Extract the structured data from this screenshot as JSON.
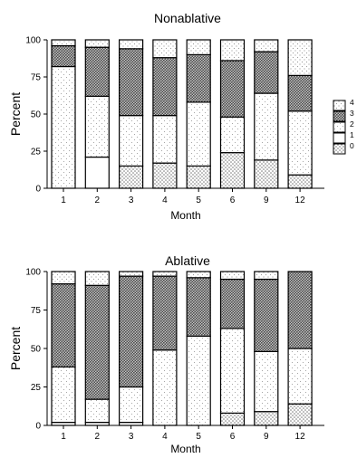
{
  "chart_data": [
    {
      "type": "bar",
      "stacked": true,
      "title": "Nonablative",
      "xlabel": "Month",
      "ylabel": "Percent",
      "ylim": [
        0,
        100
      ],
      "yticks": [
        0,
        25,
        50,
        75,
        100
      ],
      "categories": [
        "1",
        "2",
        "3",
        "4",
        "5",
        "6",
        "9",
        "12"
      ],
      "series": [
        {
          "name": "0",
          "values": [
            0,
            0,
            15,
            17,
            15,
            24,
            19,
            9
          ]
        },
        {
          "name": "1",
          "values": [
            0,
            21,
            0,
            0,
            0,
            0,
            0,
            0
          ]
        },
        {
          "name": "2",
          "values": [
            82,
            41,
            34,
            32,
            43,
            24,
            45,
            43
          ]
        },
        {
          "name": "3",
          "values": [
            14,
            33,
            45,
            39,
            32,
            38,
            28,
            24
          ]
        },
        {
          "name": "4",
          "values": [
            4,
            5,
            6,
            12,
            10,
            14,
            8,
            24
          ]
        }
      ],
      "legend": {
        "placement": "right",
        "labels": [
          "4",
          "3",
          "2",
          "1",
          "0"
        ]
      },
      "grid": false
    },
    {
      "type": "bar",
      "stacked": true,
      "title": "Ablative",
      "xlabel": "Month",
      "ylabel": "Percent",
      "ylim": [
        0,
        100
      ],
      "yticks": [
        0,
        25,
        50,
        75,
        100
      ],
      "categories": [
        "1",
        "2",
        "3",
        "4",
        "5",
        "6",
        "9",
        "12"
      ],
      "series": [
        {
          "name": "0",
          "values": [
            0,
            0,
            0,
            0,
            0,
            8,
            9,
            14
          ]
        },
        {
          "name": "1",
          "values": [
            2,
            2,
            2,
            0,
            0,
            0,
            0,
            0
          ]
        },
        {
          "name": "2",
          "values": [
            36,
            15,
            23,
            49,
            58,
            55,
            39,
            36
          ]
        },
        {
          "name": "3",
          "values": [
            54,
            74,
            72,
            48,
            38,
            32,
            47,
            50
          ]
        },
        {
          "name": "4",
          "values": [
            8,
            9,
            3,
            3,
            4,
            5,
            5,
            0
          ]
        }
      ],
      "grid": false
    }
  ]
}
